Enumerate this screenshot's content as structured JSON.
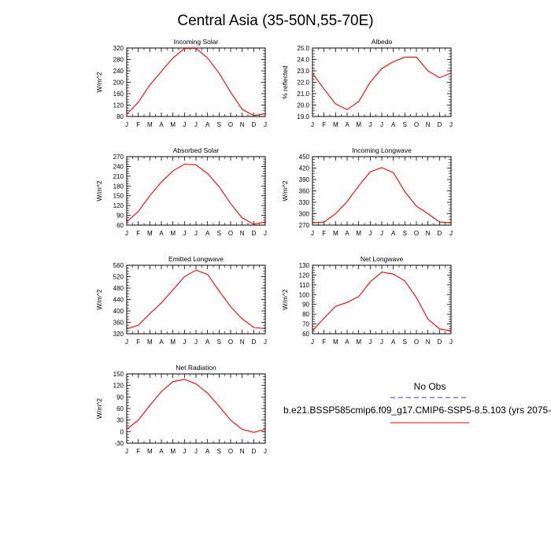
{
  "figure": {
    "title": "Central Asia (35-50N,55-70E)"
  },
  "legend": {
    "obs_label": "No Obs",
    "model_label": "b.e21.BSSP585cmip6.f09_g17.CMIP6-SSP5-8.5.103 (yrs 2075-",
    "obs_color": "#5a5aff",
    "model_color": "#ff0000"
  },
  "chart_data": [
    {
      "type": "line",
      "title": "Incoming Solar",
      "xlabel": "",
      "ylabel": "W/m^2",
      "categories": [
        "J",
        "F",
        "M",
        "A",
        "M",
        "J",
        "J",
        "A",
        "S",
        "O",
        "N",
        "D",
        "J"
      ],
      "yticks": [
        80,
        120,
        160,
        200,
        240,
        280,
        320
      ],
      "ylim": [
        80,
        320
      ],
      "series": [
        {
          "values": [
            88,
            130,
            190,
            238,
            285,
            318,
            319,
            285,
            232,
            165,
            105,
            83,
            90
          ]
        }
      ]
    },
    {
      "type": "line",
      "title": "Albedo",
      "xlabel": "",
      "ylabel": "% reflected",
      "categories": [
        "J",
        "F",
        "M",
        "A",
        "M",
        "J",
        "J",
        "A",
        "S",
        "O",
        "N",
        "D",
        "J"
      ],
      "yticks": [
        "19.0",
        "20.0",
        "21.0",
        "22.0",
        "23.0",
        "24.0",
        "25.0"
      ],
      "ylim": [
        19,
        25
      ],
      "series": [
        {
          "values": [
            22.8,
            21.4,
            20.1,
            19.6,
            20.3,
            22.0,
            23.2,
            23.8,
            24.2,
            24.2,
            23.0,
            22.4,
            22.8
          ]
        }
      ]
    },
    {
      "type": "line",
      "title": "Absorbed Solar",
      "xlabel": "",
      "ylabel": "W/m^2",
      "categories": [
        "J",
        "F",
        "M",
        "A",
        "M",
        "J",
        "J",
        "A",
        "S",
        "O",
        "N",
        "D",
        "J"
      ],
      "yticks": [
        60,
        90,
        120,
        150,
        180,
        210,
        240,
        270
      ],
      "ylim": [
        60,
        270
      ],
      "series": [
        {
          "values": [
            70,
            102,
            150,
            192,
            226,
            247,
            245,
            218,
            178,
            126,
            82,
            63,
            70
          ]
        }
      ]
    },
    {
      "type": "line",
      "title": "Incoming Longwave",
      "xlabel": "",
      "ylabel": "W/m^2",
      "categories": [
        "J",
        "F",
        "M",
        "A",
        "M",
        "J",
        "J",
        "A",
        "S",
        "O",
        "N",
        "D",
        "J"
      ],
      "yticks": [
        270,
        300,
        330,
        360,
        390,
        420,
        450
      ],
      "ylim": [
        270,
        450
      ],
      "series": [
        {
          "values": [
            276,
            278,
            300,
            332,
            373,
            410,
            421,
            408,
            358,
            320,
            300,
            278,
            276
          ]
        }
      ]
    },
    {
      "type": "line",
      "title": "Emitted Longwave",
      "xlabel": "",
      "ylabel": "W/m^2",
      "categories": [
        "J",
        "F",
        "M",
        "A",
        "M",
        "J",
        "J",
        "A",
        "S",
        "O",
        "N",
        "D",
        "J"
      ],
      "yticks": [
        320,
        360,
        400,
        440,
        480,
        520,
        560
      ],
      "ylim": [
        320,
        560
      ],
      "series": [
        {
          "values": [
            337,
            350,
            390,
            428,
            474,
            520,
            543,
            528,
            470,
            415,
            372,
            342,
            338
          ]
        }
      ]
    },
    {
      "type": "line",
      "title": "Net Longwave",
      "xlabel": "",
      "ylabel": "W/m^2",
      "categories": [
        "J",
        "F",
        "M",
        "A",
        "M",
        "J",
        "J",
        "A",
        "S",
        "O",
        "N",
        "D",
        "J"
      ],
      "yticks": [
        60,
        70,
        80,
        90,
        100,
        110,
        120,
        130
      ],
      "ylim": [
        60,
        130
      ],
      "series": [
        {
          "values": [
            63,
            76,
            88,
            92,
            98,
            113,
            123,
            121,
            114,
            97,
            75,
            65,
            63
          ]
        }
      ]
    },
    {
      "type": "line",
      "title": "Net Radiation",
      "xlabel": "",
      "ylabel": "W/m^2",
      "categories": [
        "J",
        "F",
        "M",
        "A",
        "M",
        "J",
        "J",
        "A",
        "S",
        "O",
        "N",
        "D",
        "J"
      ],
      "yticks": [
        -30,
        0,
        30,
        60,
        90,
        120,
        150
      ],
      "ylim": [
        -30,
        150
      ],
      "series": [
        {
          "values": [
            6,
            30,
            68,
            104,
            130,
            136,
            124,
            100,
            66,
            30,
            6,
            -2,
            6
          ]
        }
      ]
    }
  ]
}
